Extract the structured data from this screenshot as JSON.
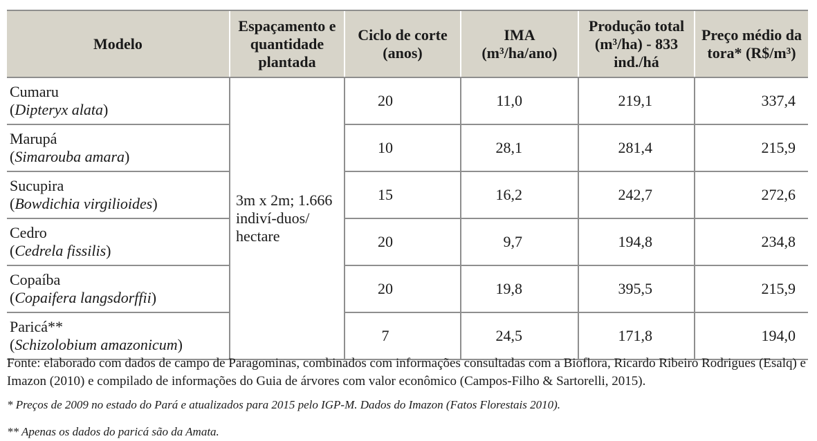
{
  "headers": {
    "modelo": "Modelo",
    "espacamento": "Espaçamento e quantidade plantada",
    "ciclo": "Ciclo de corte (anos)",
    "ima_prefix": "IMA",
    "ima_unit": "(m³/ha/ano)",
    "producao": "Produção total (m³/ha) - 833 ind./há",
    "preco": "Preço médio da tora* (R$/m³)"
  },
  "spacing_value": "3m x 2m; 1.666 indiví-duos/ hectare",
  "rows": [
    {
      "name": "Cumaru",
      "sci_open": "(",
      "sci": "Dipteryx alata",
      "sci_close": ")",
      "ciclo": "20",
      "ima": "11,0",
      "producao": "219,1",
      "preco": "337,4"
    },
    {
      "name": "Marupá",
      "sci_open": "(",
      "sci": "Simarouba amara",
      "sci_close": ")",
      "ciclo": "10",
      "ima": "28,1",
      "producao": "281,4",
      "preco": "215,9"
    },
    {
      "name": "Sucupira",
      "sci_open": "(",
      "sci": "Bowdichia virgilioides",
      "sci_close": ")",
      "ciclo": "15",
      "ima": "16,2",
      "producao": "242,7",
      "preco": "272,6"
    },
    {
      "name": "Cedro",
      "sci_open": "(",
      "sci": "Cedrela fissilis",
      "sci_close": ")",
      "ciclo": "20",
      "ima": "9,7",
      "producao": "194,8",
      "preco": "234,8"
    },
    {
      "name": "Copaíba",
      "sci_open": "(",
      "sci": "Copaifera langsdorffii",
      "sci_close": ")",
      "ciclo": "20",
      "ima": "19,8",
      "producao": "395,5",
      "preco": "215,9"
    },
    {
      "name": "Paricá**",
      "sci_open": "(",
      "sci": "Schizolobium amazonicum",
      "sci_close": ")",
      "ciclo": "7",
      "ima": "24,5",
      "producao": "171,8",
      "preco": "194,0"
    }
  ],
  "source": "Fonte: elaborado com dados de campo de Paragominas, combinados com informações consultadas com a Bioflora, Ricardo Ribeiro Rodrigues (Esalq) e Imazon (2010) e compilado de informações do Guia de árvores com valor econômico (Campos-Filho & Sartorelli, 2015).",
  "footnote1": "* Preços de 2009 no estado do Pará e atualizados para 2015 pelo IGP-M. Dados do Imazon (Fatos Florestais 2010).",
  "footnote2": "** Apenas os dados do paricá são da Amata."
}
